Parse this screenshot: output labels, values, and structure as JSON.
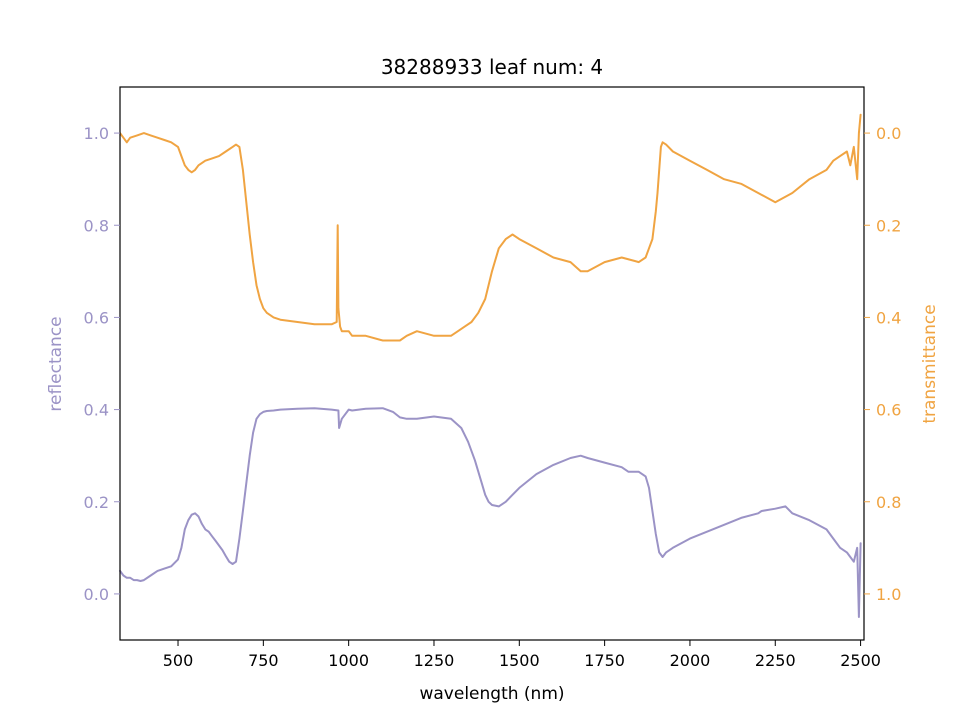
{
  "chart_data": {
    "type": "line",
    "title": "38288933 leaf num: 4",
    "xlabel": "wavelength (nm)",
    "xlim": [
      330,
      2510
    ],
    "xticks": [
      500,
      750,
      1000,
      1250,
      1500,
      1750,
      2000,
      2250,
      2500
    ],
    "grid": false,
    "left_axis": {
      "label": "reflectance",
      "color": "#9b93c6",
      "ylim": [
        -0.1,
        1.1
      ],
      "ticks": [
        "0.0",
        "0.2",
        "0.4",
        "0.6",
        "0.8",
        "1.0"
      ],
      "tick_values": [
        0.0,
        0.2,
        0.4,
        0.6,
        0.8,
        1.0
      ]
    },
    "right_axis": {
      "label": "transmittance",
      "color": "#f0a442",
      "ylim": [
        1.1,
        -0.1
      ],
      "inverted": true,
      "ticks": [
        "0.0",
        "0.2",
        "0.4",
        "0.6",
        "0.8",
        "1.0"
      ],
      "tick_values": [
        0.0,
        0.2,
        0.4,
        0.6,
        0.8,
        1.0
      ]
    },
    "series": [
      {
        "axis": "left",
        "color": "#9b93c6",
        "x": [
          330,
          340,
          350,
          360,
          370,
          380,
          390,
          400,
          420,
          440,
          460,
          480,
          500,
          510,
          520,
          530,
          540,
          550,
          560,
          570,
          580,
          590,
          600,
          610,
          620,
          630,
          640,
          650,
          660,
          670,
          680,
          690,
          700,
          710,
          720,
          730,
          740,
          750,
          760,
          780,
          800,
          850,
          900,
          950,
          970,
          972,
          980,
          1000,
          1010,
          1050,
          1100,
          1130,
          1150,
          1170,
          1200,
          1250,
          1300,
          1330,
          1350,
          1370,
          1390,
          1400,
          1410,
          1420,
          1440,
          1460,
          1480,
          1500,
          1550,
          1600,
          1650,
          1680,
          1700,
          1750,
          1800,
          1820,
          1850,
          1870,
          1880,
          1890,
          1900,
          1905,
          1910,
          1920,
          1930,
          1950,
          2000,
          2050,
          2100,
          2150,
          2200,
          2210,
          2250,
          2280,
          2300,
          2350,
          2400,
          2420,
          2440,
          2460,
          2470,
          2480,
          2490,
          2495,
          2500
        ],
        "y": [
          0.05,
          0.04,
          0.035,
          0.035,
          0.03,
          0.03,
          0.028,
          0.03,
          0.04,
          0.05,
          0.055,
          0.06,
          0.075,
          0.1,
          0.14,
          0.16,
          0.172,
          0.175,
          0.168,
          0.152,
          0.14,
          0.135,
          0.125,
          0.115,
          0.105,
          0.095,
          0.082,
          0.07,
          0.065,
          0.07,
          0.12,
          0.18,
          0.24,
          0.3,
          0.35,
          0.38,
          0.39,
          0.395,
          0.397,
          0.398,
          0.4,
          0.402,
          0.403,
          0.4,
          0.398,
          0.36,
          0.38,
          0.4,
          0.398,
          0.402,
          0.403,
          0.395,
          0.383,
          0.38,
          0.38,
          0.385,
          0.38,
          0.36,
          0.33,
          0.29,
          0.24,
          0.215,
          0.2,
          0.193,
          0.19,
          0.2,
          0.215,
          0.23,
          0.26,
          0.28,
          0.295,
          0.3,
          0.295,
          0.285,
          0.275,
          0.265,
          0.265,
          0.255,
          0.23,
          0.18,
          0.13,
          0.11,
          0.09,
          0.08,
          0.09,
          0.1,
          0.12,
          0.135,
          0.15,
          0.165,
          0.175,
          0.18,
          0.185,
          0.19,
          0.175,
          0.16,
          0.14,
          0.12,
          0.1,
          0.09,
          0.08,
          0.07,
          0.1,
          -0.05,
          0.11
        ]
      },
      {
        "axis": "right",
        "color": "#f0a442",
        "x": [
          330,
          340,
          350,
          360,
          380,
          400,
          420,
          440,
          460,
          480,
          500,
          510,
          520,
          530,
          540,
          550,
          560,
          580,
          600,
          620,
          640,
          660,
          670,
          680,
          690,
          700,
          710,
          720,
          730,
          740,
          750,
          760,
          780,
          800,
          850,
          900,
          950,
          965,
          968,
          970,
          975,
          980,
          1000,
          1010,
          1050,
          1100,
          1130,
          1150,
          1170,
          1200,
          1250,
          1300,
          1320,
          1340,
          1360,
          1380,
          1400,
          1420,
          1440,
          1460,
          1480,
          1500,
          1550,
          1600,
          1650,
          1680,
          1700,
          1750,
          1800,
          1850,
          1870,
          1880,
          1890,
          1895,
          1900,
          1905,
          1910,
          1915,
          1920,
          1930,
          1950,
          2000,
          2050,
          2100,
          2150,
          2200,
          2250,
          2300,
          2350,
          2400,
          2420,
          2440,
          2460,
          2470,
          2480,
          2490,
          2495,
          2500
        ],
        "y": [
          0.0,
          0.01,
          0.02,
          0.01,
          0.005,
          0.0,
          0.005,
          0.01,
          0.015,
          0.02,
          0.03,
          0.05,
          0.07,
          0.08,
          0.085,
          0.08,
          0.07,
          0.06,
          0.055,
          0.05,
          0.04,
          0.03,
          0.025,
          0.03,
          0.08,
          0.15,
          0.22,
          0.28,
          0.33,
          0.36,
          0.38,
          0.39,
          0.4,
          0.405,
          0.41,
          0.415,
          0.415,
          0.41,
          0.2,
          0.38,
          0.42,
          0.43,
          0.43,
          0.44,
          0.44,
          0.45,
          0.45,
          0.45,
          0.44,
          0.43,
          0.44,
          0.44,
          0.43,
          0.42,
          0.41,
          0.39,
          0.36,
          0.3,
          0.25,
          0.23,
          0.22,
          0.23,
          0.25,
          0.27,
          0.28,
          0.3,
          0.3,
          0.28,
          0.27,
          0.28,
          0.27,
          0.25,
          0.23,
          0.2,
          0.17,
          0.13,
          0.08,
          0.03,
          0.02,
          0.025,
          0.04,
          0.06,
          0.08,
          0.1,
          0.11,
          0.13,
          0.15,
          0.13,
          0.1,
          0.08,
          0.06,
          0.05,
          0.04,
          0.07,
          0.03,
          0.1,
          0.0,
          -0.04
        ]
      }
    ]
  }
}
